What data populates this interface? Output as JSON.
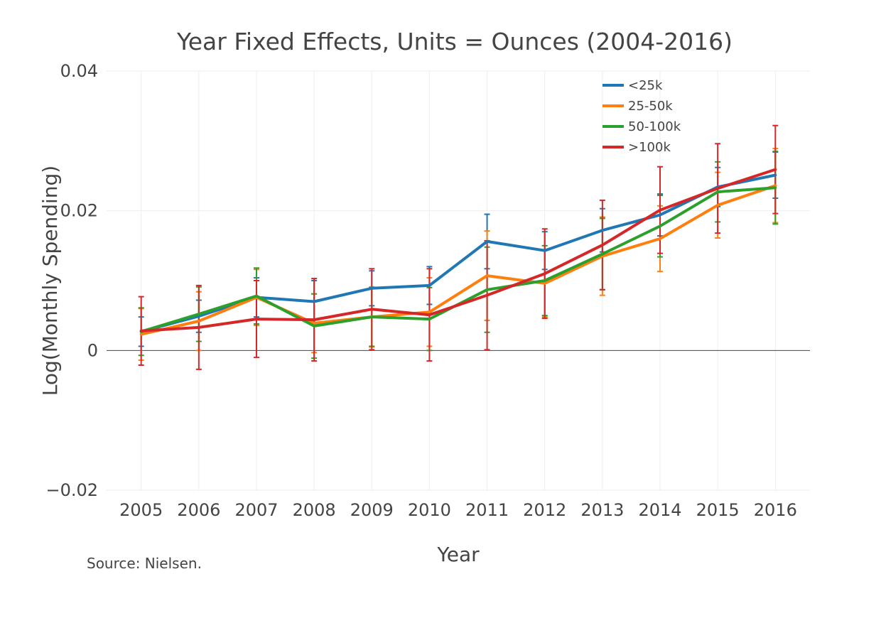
{
  "chart_data": {
    "type": "line",
    "title": "Year Fixed Effects, Units = Ounces (2004-2016)",
    "xlabel": "Year",
    "ylabel": "Log(Monthly Spending)",
    "annotation": "Source: Nielsen.",
    "x": [
      2005,
      2006,
      2007,
      2008,
      2009,
      2010,
      2011,
      2012,
      2013,
      2014,
      2015,
      2016
    ],
    "x_tick_labels": [
      "2005",
      "2006",
      "2007",
      "2008",
      "2009",
      "2010",
      "2011",
      "2012",
      "2013",
      "2014",
      "2015",
      "2016"
    ],
    "ylim": [
      -0.02,
      0.04
    ],
    "y_ticks": [
      -0.02,
      0,
      0.02,
      0.04
    ],
    "y_tick_labels": [
      "−0.02",
      "0",
      "0.02",
      "0.04"
    ],
    "grid": true,
    "legend_position": "top-right",
    "series": [
      {
        "name": "<25k",
        "color": "#1f77b4",
        "values": [
          0.0027,
          0.0049,
          0.0076,
          0.007,
          0.0089,
          0.0093,
          0.0156,
          0.0143,
          0.0172,
          0.0194,
          0.0234,
          0.0251
        ],
        "error": [
          0.0021,
          0.0023,
          0.0028,
          0.003,
          0.0025,
          0.0027,
          0.0039,
          0.0027,
          0.0031,
          0.003,
          0.0028,
          0.0033
        ]
      },
      {
        "name": "25-50k",
        "color": "#ff7f0e",
        "values": [
          0.0023,
          0.0042,
          0.0076,
          0.0039,
          0.0048,
          0.0055,
          0.0107,
          0.0096,
          0.0135,
          0.016,
          0.0208,
          0.0236
        ],
        "error": [
          0.0037,
          0.0042,
          0.004,
          0.0042,
          0.0043,
          0.0049,
          0.0064,
          0.0048,
          0.0056,
          0.0047,
          0.0047,
          0.0053
        ]
      },
      {
        "name": "50-100k",
        "color": "#2ca02c",
        "values": [
          0.0027,
          0.0052,
          0.0078,
          0.0035,
          0.0048,
          0.0045,
          0.0087,
          0.01,
          0.0138,
          0.0178,
          0.0227,
          0.0233
        ],
        "error": [
          0.0034,
          0.0039,
          0.004,
          0.0046,
          0.0042,
          0.0045,
          0.0061,
          0.005,
          0.0051,
          0.0044,
          0.0043,
          0.0052
        ]
      },
      {
        "name": ">100k",
        "color": "#d62728",
        "values": [
          0.0028,
          0.0033,
          0.0045,
          0.0044,
          0.0059,
          0.0051,
          0.0079,
          0.011,
          0.0151,
          0.0201,
          0.0232,
          0.0259
        ],
        "error": [
          0.0049,
          0.006,
          0.0055,
          0.0059,
          0.0058,
          0.0066,
          0.0078,
          0.0064,
          0.0064,
          0.0062,
          0.0064,
          0.0063
        ]
      }
    ]
  }
}
